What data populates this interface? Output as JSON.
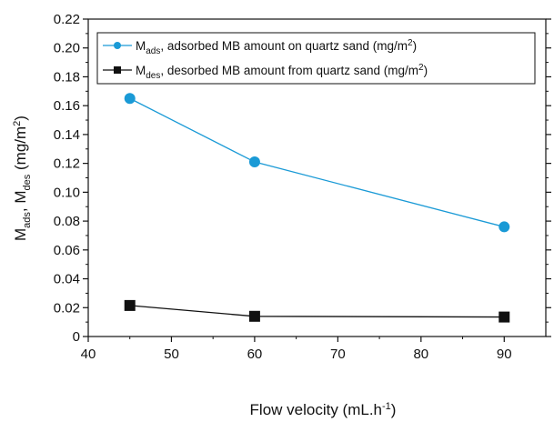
{
  "chart_data": {
    "type": "line",
    "x": [
      45,
      60,
      90
    ],
    "xlabel": {
      "base": "Flow velocity (mL.h",
      "sup": "-1",
      "tail": ")"
    },
    "ylabel": {
      "m": "M",
      "ads_sub": "ads",
      "sep": ", M",
      "des_sub": "des",
      "unit_pre": " (mg/m",
      "unit_sup": "2",
      "unit_post": ")"
    },
    "xlim": [
      40,
      95
    ],
    "ylim": [
      0,
      0.22
    ],
    "xticks": [
      "40",
      "50",
      "60",
      "70",
      "80",
      "90"
    ],
    "yticks": [
      "0",
      "0.02",
      "0.04",
      "0.06",
      "0.08",
      "0.10",
      "0.12",
      "0.14",
      "0.16",
      "0.18",
      "0.20",
      "0.22"
    ],
    "legend_position": "top-right",
    "series": [
      {
        "key": "ads",
        "values": [
          0.165,
          0.121,
          0.076
        ],
        "color": "#1a9ad6",
        "marker": "circle",
        "legend": {
          "m": "M",
          "sub": "ads",
          "text": ", adsorbed MB amount on quartz sand (mg/m",
          "sup": "2",
          "tail": ")"
        }
      },
      {
        "key": "des",
        "values": [
          0.0215,
          0.014,
          0.0135
        ],
        "color": "#111111",
        "marker": "square",
        "legend": {
          "m": "M",
          "sub": "des",
          "text": ", desorbed  MB amount from quartz sand (mg/m",
          "sup": "2",
          "tail": ")"
        }
      }
    ]
  }
}
